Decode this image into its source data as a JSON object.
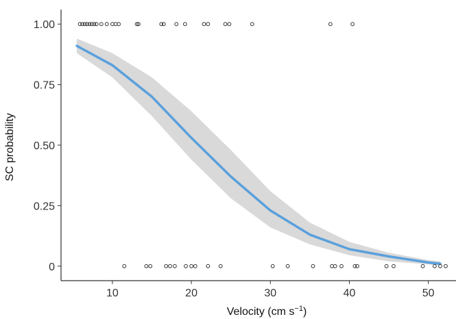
{
  "chart_data": {
    "type": "scatter",
    "title": "",
    "xlabel": "Velocity (cm s",
    "xlabel_superscript": "−1",
    "xlabel_suffix": ")",
    "ylabel": "SC probability",
    "xlim": [
      3.5,
      53.5
    ],
    "ylim": [
      -0.06,
      1.06
    ],
    "x_ticks": [
      10,
      20,
      30,
      40,
      50
    ],
    "x_tick_labels": [
      "10",
      "20",
      "30",
      "40",
      "50"
    ],
    "y_ticks": [
      0,
      0.25,
      0.5,
      0.75,
      1.0
    ],
    "y_tick_labels": [
      "0",
      "0.25",
      "0.50",
      "0.75",
      "1.00"
    ],
    "grid": false,
    "series": [
      {
        "type": "scatter",
        "marker": "open-circle",
        "color": "#333333",
        "points": [
          {
            "x": 5.9,
            "y": 1
          },
          {
            "x": 6.2,
            "y": 1
          },
          {
            "x": 6.5,
            "y": 1
          },
          {
            "x": 6.8,
            "y": 1
          },
          {
            "x": 7.1,
            "y": 1
          },
          {
            "x": 7.4,
            "y": 1
          },
          {
            "x": 7.7,
            "y": 1
          },
          {
            "x": 8.0,
            "y": 1
          },
          {
            "x": 8.6,
            "y": 1
          },
          {
            "x": 9.3,
            "y": 1
          },
          {
            "x": 10.0,
            "y": 1
          },
          {
            "x": 10.4,
            "y": 1
          },
          {
            "x": 10.8,
            "y": 1
          },
          {
            "x": 13.1,
            "y": 1
          },
          {
            "x": 13.3,
            "y": 1
          },
          {
            "x": 16.2,
            "y": 1
          },
          {
            "x": 16.5,
            "y": 1
          },
          {
            "x": 18.1,
            "y": 1
          },
          {
            "x": 19.2,
            "y": 1
          },
          {
            "x": 21.6,
            "y": 1
          },
          {
            "x": 22.1,
            "y": 1
          },
          {
            "x": 24.3,
            "y": 1
          },
          {
            "x": 24.8,
            "y": 1
          },
          {
            "x": 27.7,
            "y": 1
          },
          {
            "x": 37.6,
            "y": 1
          },
          {
            "x": 40.4,
            "y": 1
          },
          {
            "x": 11.5,
            "y": 0
          },
          {
            "x": 14.3,
            "y": 0
          },
          {
            "x": 14.8,
            "y": 0
          },
          {
            "x": 16.8,
            "y": 0
          },
          {
            "x": 17.3,
            "y": 0
          },
          {
            "x": 17.9,
            "y": 0
          },
          {
            "x": 19.3,
            "y": 0
          },
          {
            "x": 20.0,
            "y": 0
          },
          {
            "x": 20.5,
            "y": 0
          },
          {
            "x": 22.1,
            "y": 0
          },
          {
            "x": 23.7,
            "y": 0
          },
          {
            "x": 30.3,
            "y": 0
          },
          {
            "x": 32.2,
            "y": 0
          },
          {
            "x": 35.4,
            "y": 0
          },
          {
            "x": 37.8,
            "y": 0
          },
          {
            "x": 38.2,
            "y": 0
          },
          {
            "x": 39.0,
            "y": 0
          },
          {
            "x": 40.7,
            "y": 0
          },
          {
            "x": 41.0,
            "y": 0
          },
          {
            "x": 44.7,
            "y": 0
          },
          {
            "x": 45.6,
            "y": 0
          },
          {
            "x": 49.3,
            "y": 0
          },
          {
            "x": 50.8,
            "y": 0
          },
          {
            "x": 51.5,
            "y": 0
          },
          {
            "x": 52.2,
            "y": 0
          }
        ]
      },
      {
        "type": "line",
        "color": "#5aa0dc",
        "x": [
          5.5,
          10,
          15,
          20,
          25,
          30,
          35,
          40,
          45,
          50,
          51.5
        ],
        "y": [
          0.91,
          0.83,
          0.7,
          0.53,
          0.37,
          0.23,
          0.13,
          0.07,
          0.04,
          0.015,
          0.01
        ]
      },
      {
        "type": "band",
        "color": "#d9d9d9",
        "x": [
          5.5,
          10,
          15,
          20,
          25,
          30,
          35,
          40,
          45,
          50,
          51.5
        ],
        "lower": [
          0.88,
          0.78,
          0.62,
          0.44,
          0.28,
          0.16,
          0.09,
          0.045,
          0.02,
          0.007,
          0.004
        ],
        "upper": [
          0.94,
          0.88,
          0.78,
          0.64,
          0.48,
          0.31,
          0.18,
          0.1,
          0.055,
          0.025,
          0.02
        ]
      }
    ]
  }
}
